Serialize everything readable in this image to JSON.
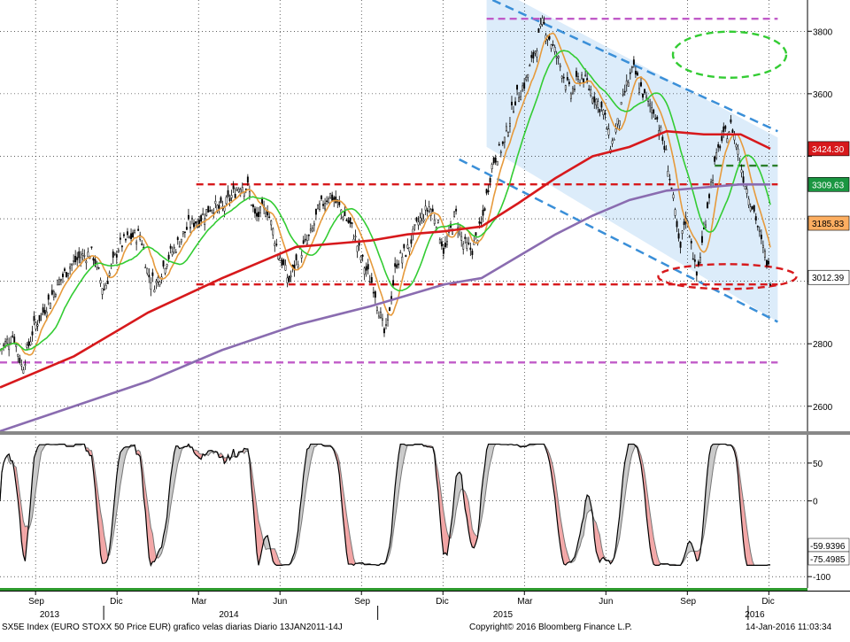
{
  "chart_data": [
    {
      "type": "candlestick",
      "title": "",
      "y_axis_side": "right",
      "ylim": [
        2520,
        3900
      ],
      "y_ticks": [
        2600,
        2800,
        3000,
        3200,
        3400,
        3600,
        3800
      ],
      "y_tick_labels": [
        "2600",
        "2800",
        "",
        "",
        "",
        "3600",
        "3800"
      ],
      "grid": true,
      "price_path": [
        [
          0,
          2780
        ],
        [
          0.018,
          2830
        ],
        [
          0.03,
          2720
        ],
        [
          0.045,
          2850
        ],
        [
          0.06,
          2910
        ],
        [
          0.08,
          3000
        ],
        [
          0.095,
          3050
        ],
        [
          0.11,
          3080
        ],
        [
          0.125,
          3090
        ],
        [
          0.14,
          2970
        ],
        [
          0.16,
          3110
        ],
        [
          0.175,
          3140
        ],
        [
          0.19,
          3150
        ],
        [
          0.2,
          3020
        ],
        [
          0.21,
          2990
        ],
        [
          0.225,
          3070
        ],
        [
          0.24,
          3120
        ],
        [
          0.255,
          3180
        ],
        [
          0.27,
          3200
        ],
        [
          0.285,
          3240
        ],
        [
          0.3,
          3230
        ],
        [
          0.315,
          3280
        ],
        [
          0.325,
          3310
        ],
        [
          0.335,
          3300
        ],
        [
          0.345,
          3200
        ],
        [
          0.36,
          3240
        ],
        [
          0.375,
          3100
        ],
        [
          0.39,
          3000
        ],
        [
          0.405,
          3090
        ],
        [
          0.42,
          3150
        ],
        [
          0.43,
          3230
        ],
        [
          0.445,
          3280
        ],
        [
          0.46,
          3230
        ],
        [
          0.475,
          3170
        ],
        [
          0.49,
          3060
        ],
        [
          0.505,
          2980
        ],
        [
          0.52,
          2820
        ],
        [
          0.535,
          3060
        ],
        [
          0.55,
          3100
        ],
        [
          0.565,
          3190
        ],
        [
          0.58,
          3240
        ],
        [
          0.59,
          3190
        ],
        [
          0.6,
          3090
        ],
        [
          0.615,
          3220
        ],
        [
          0.625,
          3120
        ],
        [
          0.637,
          3100
        ],
        [
          0.65,
          3180
        ],
        [
          0.665,
          3380
        ],
        [
          0.68,
          3440
        ],
        [
          0.695,
          3580
        ],
        [
          0.71,
          3640
        ],
        [
          0.725,
          3760
        ],
        [
          0.733,
          3830
        ],
        [
          0.745,
          3760
        ],
        [
          0.755,
          3700
        ],
        [
          0.77,
          3600
        ],
        [
          0.785,
          3660
        ],
        [
          0.8,
          3600
        ],
        [
          0.815,
          3540
        ],
        [
          0.825,
          3430
        ],
        [
          0.835,
          3510
        ],
        [
          0.845,
          3620
        ],
        [
          0.855,
          3680
        ],
        [
          0.87,
          3590
        ],
        [
          0.885,
          3540
        ],
        [
          0.9,
          3400
        ],
        [
          0.91,
          3240
        ],
        [
          0.918,
          3090
        ],
        [
          0.925,
          3210
        ],
        [
          0.933,
          3140
        ],
        [
          0.94,
          3010
        ],
        [
          0.948,
          3120
        ],
        [
          0.956,
          3260
        ],
        [
          0.963,
          3350
        ],
        [
          0.972,
          3440
        ],
        [
          0.98,
          3470
        ],
        [
          0.988,
          3500
        ],
        [
          0.996,
          3420
        ],
        [
          1.004,
          3330
        ],
        [
          1.012,
          3270
        ],
        [
          1.02,
          3210
        ],
        [
          1.028,
          3120
        ],
        [
          1.036,
          3060
        ],
        [
          1.04,
          3012.39
        ]
      ],
      "series": [
        {
          "name": "3424.30",
          "color": "#d7191c",
          "last": 3424.3
        },
        {
          "name": "3309.63",
          "color": "#1a9641",
          "last": 3309.63
        },
        {
          "name": "3185.83",
          "color": "#fdae61",
          "last": 3185.83
        },
        {
          "name": "3012.39",
          "color": "#000000",
          "last": 3012.39
        }
      ],
      "ma_200": [
        [
          0,
          2660
        ],
        [
          0.1,
          2760
        ],
        [
          0.2,
          2900
        ],
        [
          0.3,
          3010
        ],
        [
          0.35,
          3060
        ],
        [
          0.4,
          3110
        ],
        [
          0.45,
          3120
        ],
        [
          0.5,
          3130
        ],
        [
          0.55,
          3150
        ],
        [
          0.6,
          3160
        ],
        [
          0.65,
          3175
        ],
        [
          0.7,
          3250
        ],
        [
          0.75,
          3330
        ],
        [
          0.8,
          3400
        ],
        [
          0.85,
          3430
        ],
        [
          0.9,
          3480
        ],
        [
          0.95,
          3470
        ],
        [
          1.0,
          3470
        ],
        [
          1.04,
          3424.3
        ]
      ],
      "ma_400": [
        [
          0,
          2520
        ],
        [
          0.1,
          2600
        ],
        [
          0.2,
          2680
        ],
        [
          0.3,
          2780
        ],
        [
          0.4,
          2860
        ],
        [
          0.5,
          2920
        ],
        [
          0.6,
          2990
        ],
        [
          0.65,
          3010
        ],
        [
          0.7,
          3080
        ],
        [
          0.75,
          3150
        ],
        [
          0.8,
          3210
        ],
        [
          0.85,
          3260
        ],
        [
          0.9,
          3290
        ],
        [
          0.95,
          3300
        ],
        [
          1.0,
          3310
        ],
        [
          1.04,
          3309.63
        ]
      ],
      "hlines": [
        {
          "y": 3840,
          "color": "#c05bc8",
          "from": 0.657,
          "to": 1.05
        },
        {
          "y": 2740,
          "color": "#c05bc8",
          "from": 0.0,
          "to": 1.05
        },
        {
          "y": 3310,
          "color": "#d7191c",
          "from": 0.265,
          "to": 1.05
        },
        {
          "y": 2990,
          "color": "#d7191c",
          "from": 0.265,
          "to": 1.05
        },
        {
          "y": 3370,
          "color": "#2c7f2c",
          "from": 0.965,
          "to": 1.05
        }
      ],
      "x_ticks": [
        "Sep",
        "Dic",
        "Mar",
        "Jun",
        "Sep",
        "Dic",
        "Mar",
        "Jun",
        "Sep",
        "Dic"
      ],
      "x_years": [
        "2013",
        "2014",
        "2015",
        "2016"
      ]
    },
    {
      "type": "line",
      "title": "",
      "ylim": [
        -115,
        85
      ],
      "y_ticks": [
        50,
        0,
        -100
      ],
      "y_tick_labels": [
        "50",
        "0",
        "-100"
      ],
      "series": [
        {
          "name": "-59.9396",
          "last": -59.9396
        },
        {
          "name": "-75.4985",
          "last": -75.4985
        }
      ]
    }
  ],
  "footer": {
    "left": "SX5E Index (EURO STOXX 50 Price EUR) grafico velas diarias  Diario 13JAN2011-14J",
    "middle": "Copyright© 2016 Bloomberg Finance L.P.",
    "right": "14-Jan-2016 11:03:34"
  }
}
